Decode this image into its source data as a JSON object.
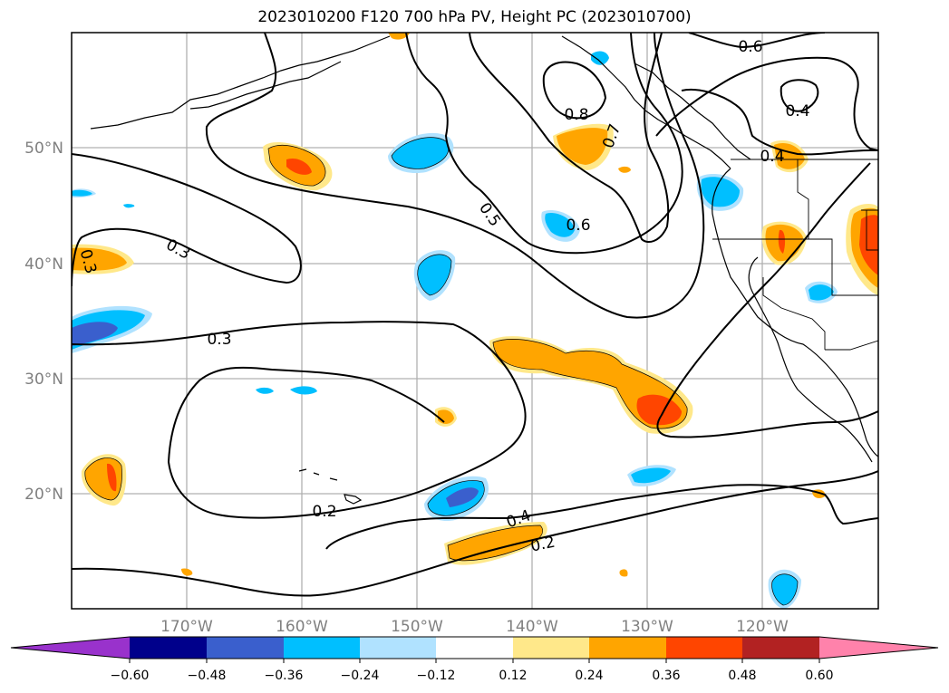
{
  "title": "2023010200 F120 700 hPa PV, Height PC (2023010700)",
  "latitude_labels": [
    "50°N",
    "40°N",
    "30°N",
    "20°N"
  ],
  "longitude_labels": [
    "170°W",
    "160°W",
    "150°W",
    "140°W",
    "130°W",
    "120°W"
  ],
  "contour_labels": [
    "0.6",
    "0.4",
    "0.4",
    "0.8",
    "0.7",
    "0.5",
    "0.6",
    "0.3",
    "0.3",
    "0.3",
    "0.2",
    "0.4",
    "0.2"
  ],
  "colorbar": {
    "tick_labels": [
      "−0.60",
      "−0.48",
      "−0.36",
      "−0.24",
      "−0.12",
      "0.12",
      "0.24",
      "0.36",
      "0.48",
      "0.60"
    ],
    "colors": [
      "#9932cc",
      "#00008b",
      "#3a5fcd",
      "#00bfff",
      "#b0e2ff",
      "#ffffff",
      "#ffe88a",
      "#ffa500",
      "#ff4500",
      "#b22222",
      "#ff82ab"
    ]
  }
}
